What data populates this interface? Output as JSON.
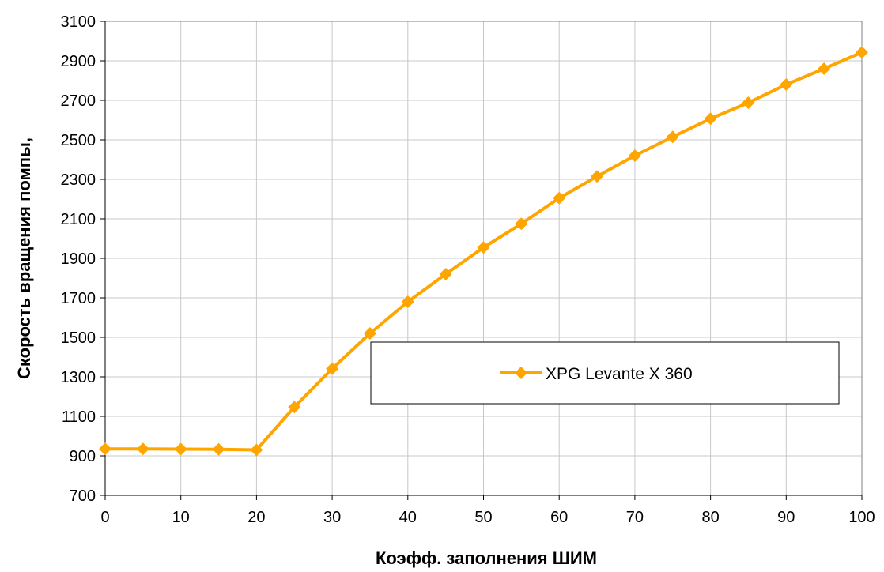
{
  "chart_data": {
    "type": "line",
    "title": "",
    "xlabel": "Коэфф. заполнения ШИМ",
    "ylabel": "Скорость вращения помпы,",
    "xlim": [
      0,
      100
    ],
    "ylim": [
      700,
      3100
    ],
    "x_ticks": [
      0,
      10,
      20,
      30,
      40,
      50,
      60,
      70,
      80,
      90,
      100
    ],
    "y_ticks": [
      700,
      900,
      1100,
      1300,
      1500,
      1700,
      1900,
      2100,
      2300,
      2500,
      2700,
      2900,
      3100
    ],
    "grid": true,
    "legend_position": "center-right",
    "series": [
      {
        "name": "XPG Levante X 360",
        "color": "#FFA500",
        "marker": "diamond",
        "x": [
          0,
          5,
          10,
          15,
          20,
          25,
          30,
          35,
          40,
          45,
          50,
          55,
          60,
          65,
          70,
          75,
          80,
          85,
          90,
          95,
          100
        ],
        "y": [
          935,
          935,
          934,
          933,
          930,
          1147,
          1341,
          1520,
          1680,
          1820,
          1955,
          2075,
          2205,
          2315,
          2420,
          2515,
          2607,
          2688,
          2780,
          2860,
          2943
        ]
      }
    ]
  }
}
